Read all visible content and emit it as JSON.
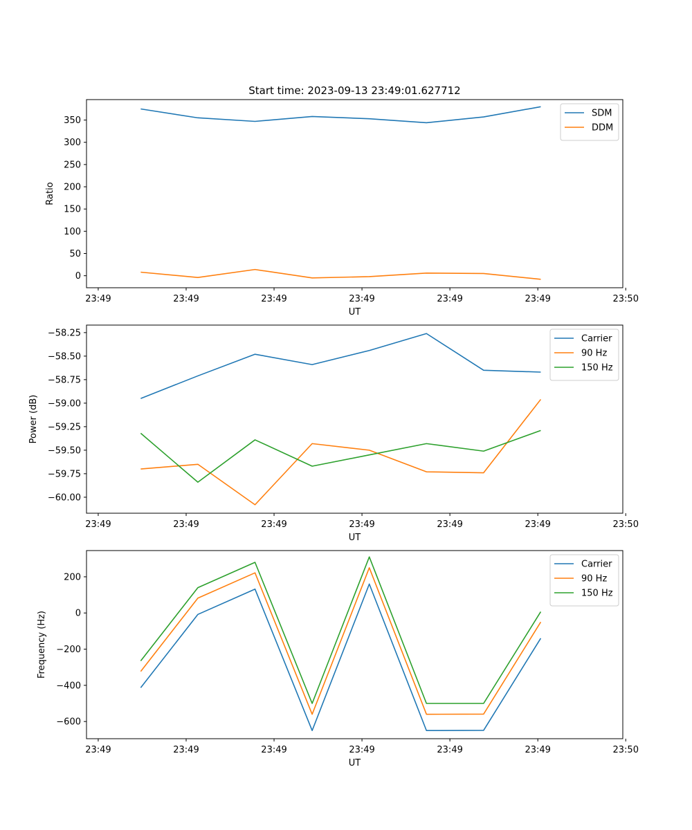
{
  "figure": {
    "title": "Start time: 2023-09-13 23:49:01.627712"
  },
  "chart_data": [
    {
      "type": "line",
      "title": "Start time: 2023-09-13 23:49:01.627712",
      "xlabel": "UT",
      "ylabel": "Ratio",
      "xlim": [
        -0.4,
        17.9
      ],
      "ylim": [
        -27,
        396
      ],
      "x_ticks": [
        0,
        3,
        6,
        9,
        12,
        15,
        18
      ],
      "x_ticklabels": [
        "23:49",
        "23:49",
        "23:49",
        "23:49",
        "23:49",
        "23:49",
        "23:50"
      ],
      "y_ticks": [
        0,
        50,
        100,
        150,
        200,
        250,
        300,
        350
      ],
      "y_ticklabels": [
        "0",
        "50",
        "100",
        "150",
        "200",
        "250",
        "300",
        "350"
      ],
      "legend": "top-right",
      "x": [
        1.45,
        3.4,
        5.35,
        7.3,
        9.25,
        11.2,
        13.15,
        15.1
      ],
      "series": [
        {
          "name": "SDM",
          "color": "#1f77b4",
          "values": [
            375,
            355,
            347,
            358,
            353,
            344,
            357,
            380
          ]
        },
        {
          "name": "DDM",
          "color": "#ff7f0e",
          "values": [
            8,
            -4,
            14,
            -5,
            -2,
            6,
            5,
            -8
          ]
        }
      ]
    },
    {
      "type": "line",
      "title": "",
      "xlabel": "UT",
      "ylabel": "Power (dB)",
      "xlim": [
        -0.4,
        17.9
      ],
      "ylim": [
        -60.17,
        -58.17
      ],
      "x_ticks": [
        0,
        3,
        6,
        9,
        12,
        15,
        18
      ],
      "x_ticklabels": [
        "23:49",
        "23:49",
        "23:49",
        "23:49",
        "23:49",
        "23:49",
        "23:50"
      ],
      "y_ticks": [
        -60.0,
        -59.75,
        -59.5,
        -59.25,
        -59.0,
        -58.75,
        -58.5,
        -58.25
      ],
      "y_ticklabels": [
        "−60.00",
        "−59.75",
        "−59.50",
        "−59.25",
        "−59.00",
        "−58.75",
        "−58.50",
        "−58.25"
      ],
      "legend": "top-right",
      "x": [
        1.45,
        3.4,
        5.35,
        7.3,
        9.25,
        11.2,
        13.15,
        15.1
      ],
      "series": [
        {
          "name": "Carrier",
          "color": "#1f77b4",
          "values": [
            -58.95,
            -58.71,
            -58.48,
            -58.59,
            -58.44,
            -58.26,
            -58.65,
            -58.67
          ]
        },
        {
          "name": "90 Hz",
          "color": "#ff7f0e",
          "values": [
            -59.7,
            -59.65,
            -60.08,
            -59.43,
            -59.5,
            -59.73,
            -59.74,
            -58.96
          ]
        },
        {
          "name": "150 Hz",
          "color": "#2ca02c",
          "values": [
            -59.32,
            -59.84,
            -59.39,
            -59.67,
            -59.55,
            -59.43,
            -59.51,
            -59.29
          ]
        }
      ]
    },
    {
      "type": "line",
      "title": "",
      "xlabel": "UT",
      "ylabel": "Frequency (Hz)",
      "xlim": [
        -0.4,
        17.9
      ],
      "ylim": [
        -695,
        345
      ],
      "x_ticks": [
        0,
        3,
        6,
        9,
        12,
        15,
        18
      ],
      "x_ticklabels": [
        "23:49",
        "23:49",
        "23:49",
        "23:49",
        "23:49",
        "23:49",
        "23:50"
      ],
      "y_ticks": [
        -600,
        -400,
        -200,
        0,
        200
      ],
      "y_ticklabels": [
        "−600",
        "−400",
        "−200",
        "0",
        "200"
      ],
      "legend": "top-right",
      "x": [
        1.45,
        3.4,
        5.35,
        7.3,
        9.25,
        11.2,
        13.15,
        15.1
      ],
      "series": [
        {
          "name": "Carrier",
          "color": "#1f77b4",
          "values": [
            -413,
            -8,
            132,
            -650,
            160,
            -650,
            -649,
            -140
          ]
        },
        {
          "name": "90 Hz",
          "color": "#ff7f0e",
          "values": [
            -323,
            82,
            222,
            -560,
            250,
            -560,
            -559,
            -50
          ]
        },
        {
          "name": "150 Hz",
          "color": "#2ca02c",
          "values": [
            -265,
            140,
            280,
            -500,
            310,
            -500,
            -500,
            7
          ]
        }
      ]
    }
  ]
}
